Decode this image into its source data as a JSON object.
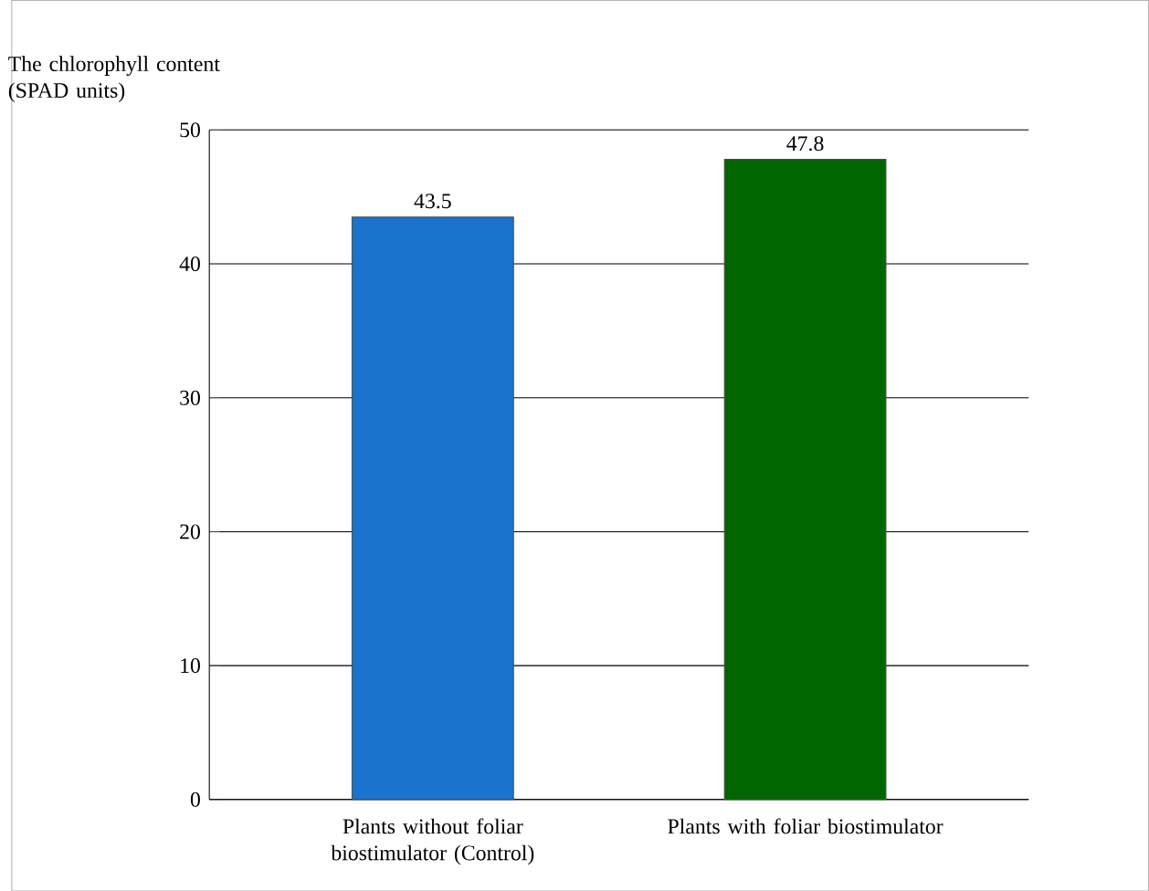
{
  "chart_data": {
    "type": "bar",
    "ylabel": "The chlorophyll content (SPAD units)",
    "categories": [
      "Plants without foliar biostimulator (Control)",
      "Plants with foliar biostimulator"
    ],
    "values": [
      43.5,
      47.8
    ],
    "colors": [
      "#1a73cc",
      "#006600"
    ],
    "ylim": [
      0,
      50
    ],
    "yticks": [
      0,
      10,
      20,
      30,
      40,
      50
    ],
    "grid": "y",
    "data_labels": true
  }
}
